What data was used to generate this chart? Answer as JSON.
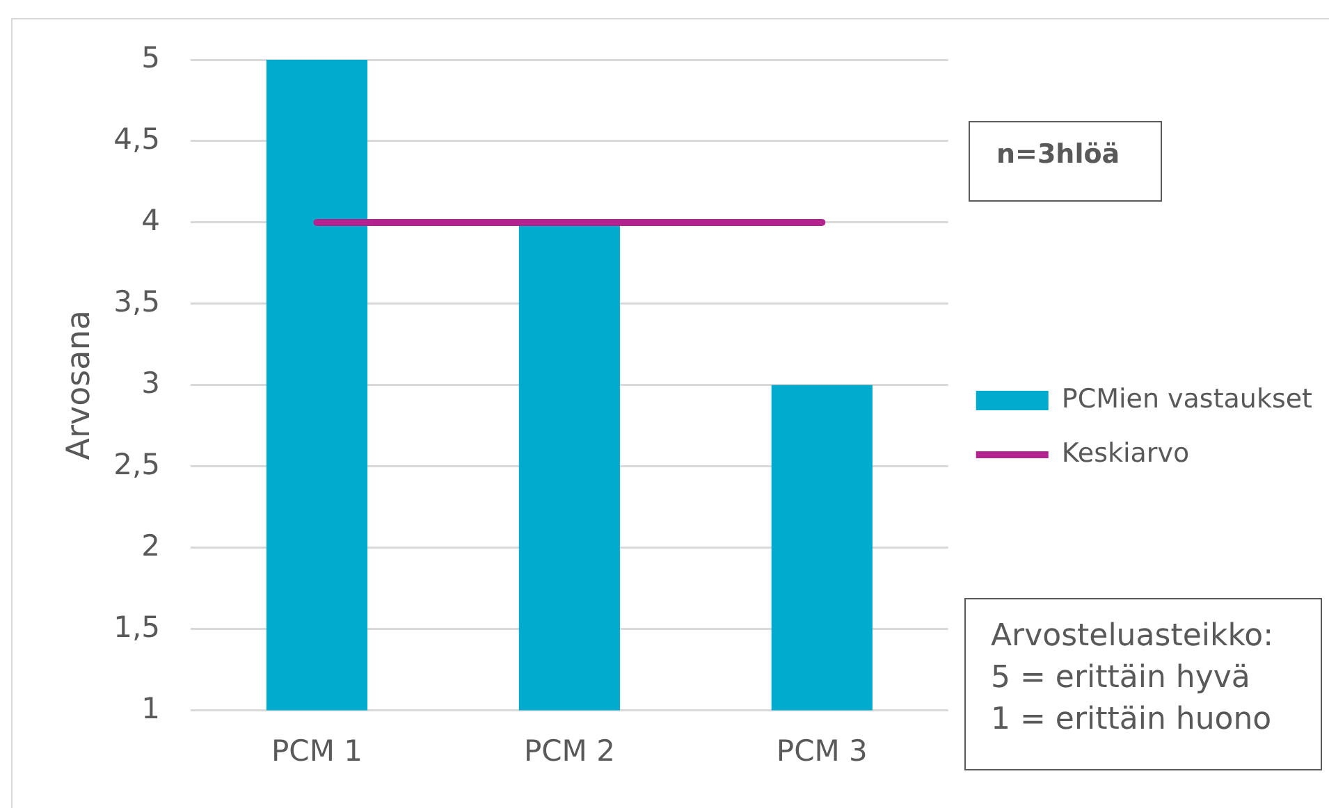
{
  "chart_data": {
    "type": "bar",
    "ylabel": "Arvosana",
    "categories": [
      "PCM 1",
      "PCM 2",
      "PCM 3"
    ],
    "series": [
      {
        "name": "PCMien vastaukset",
        "color": "#00abcd",
        "values": [
          5,
          4,
          3
        ]
      },
      {
        "name": "Keskiarvo",
        "type": "line",
        "color": "#b4228f",
        "values": [
          4,
          4,
          4
        ],
        "marker": "none"
      }
    ],
    "ylim": [
      1,
      5
    ],
    "yticks": [
      1,
      {
        "value": 1.5,
        "label": "1,5"
      },
      2,
      {
        "value": 2.5,
        "label": "2,5"
      },
      3,
      {
        "value": 3.5,
        "label": "3,5"
      },
      4,
      {
        "value": 4.5,
        "label": "4,5"
      },
      5
    ],
    "grid": "y",
    "legend": "right",
    "annotations": [
      "n=3hlöä",
      "Arvosteluasteikko:\n5 = erittäin hyvä\n1 = erittäin huono"
    ]
  }
}
